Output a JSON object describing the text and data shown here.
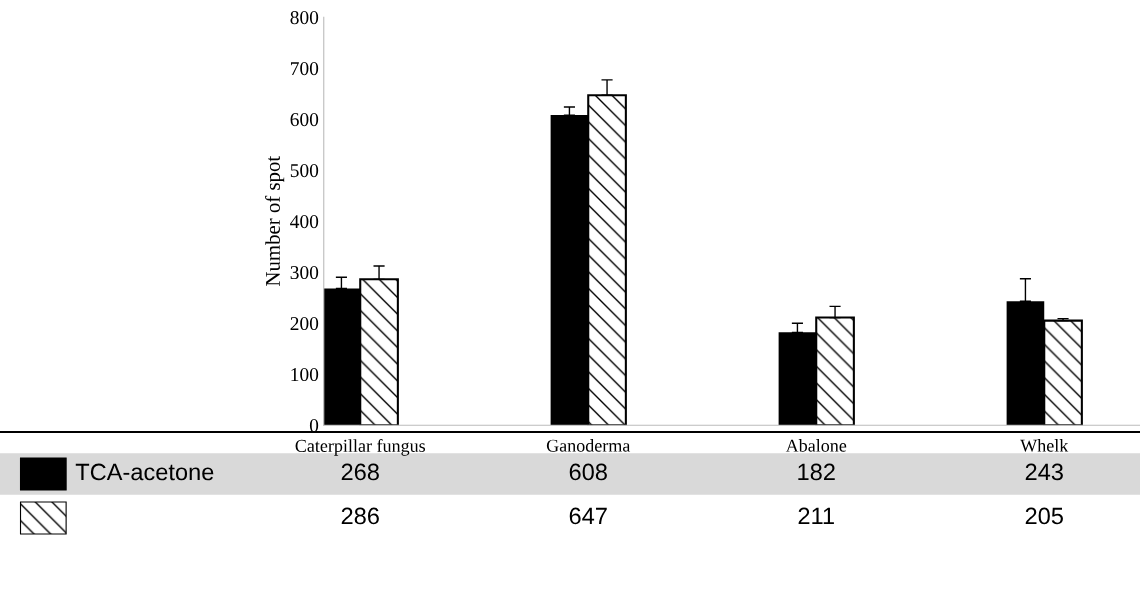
{
  "chart_data": {
    "type": "bar",
    "ylabel": "Number of spot",
    "categories": [
      "Caterpillar fungus",
      "Ganoderma",
      "Abalone",
      "Whelk"
    ],
    "series": [
      {
        "name": "TCA-acetone",
        "color": "#000000",
        "values": [
          268,
          608,
          182,
          243
        ],
        "errors": [
          22,
          16,
          18,
          44
        ]
      },
      {
        "color": "#ffffff",
        "values": [
          286,
          647,
          211,
          205
        ],
        "errors": [
          26,
          30,
          22,
          4
        ]
      }
    ],
    "ylim": [
      0,
      800
    ],
    "yticks": [
      0,
      100,
      200,
      300,
      400,
      500,
      600,
      700,
      800
    ],
    "data_labels": true,
    "grid": false
  }
}
